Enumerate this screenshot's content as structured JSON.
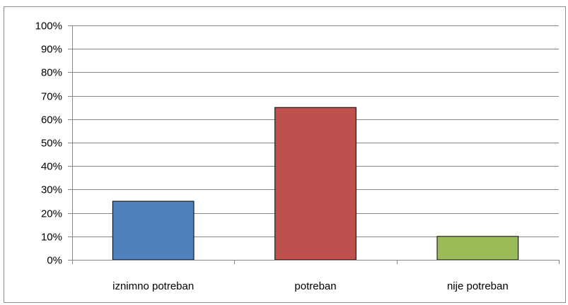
{
  "chart_data": {
    "type": "bar",
    "title": "",
    "xlabel": "",
    "ylabel": "",
    "categories": [
      "iznimno potreban",
      "potreban",
      "nije potreban"
    ],
    "values": [
      25,
      65,
      10
    ],
    "colors": [
      "#4f81bd",
      "#c0504d",
      "#9bbb59"
    ],
    "ylim": [
      0,
      100
    ],
    "yticks": [
      0,
      10,
      20,
      30,
      40,
      50,
      60,
      70,
      80,
      90,
      100
    ],
    "ytick_labels": [
      "0%",
      "10%",
      "20%",
      "30%",
      "40%",
      "50%",
      "60%",
      "70%",
      "80%",
      "90%",
      "100%"
    ],
    "grid": true,
    "legend": "none"
  }
}
